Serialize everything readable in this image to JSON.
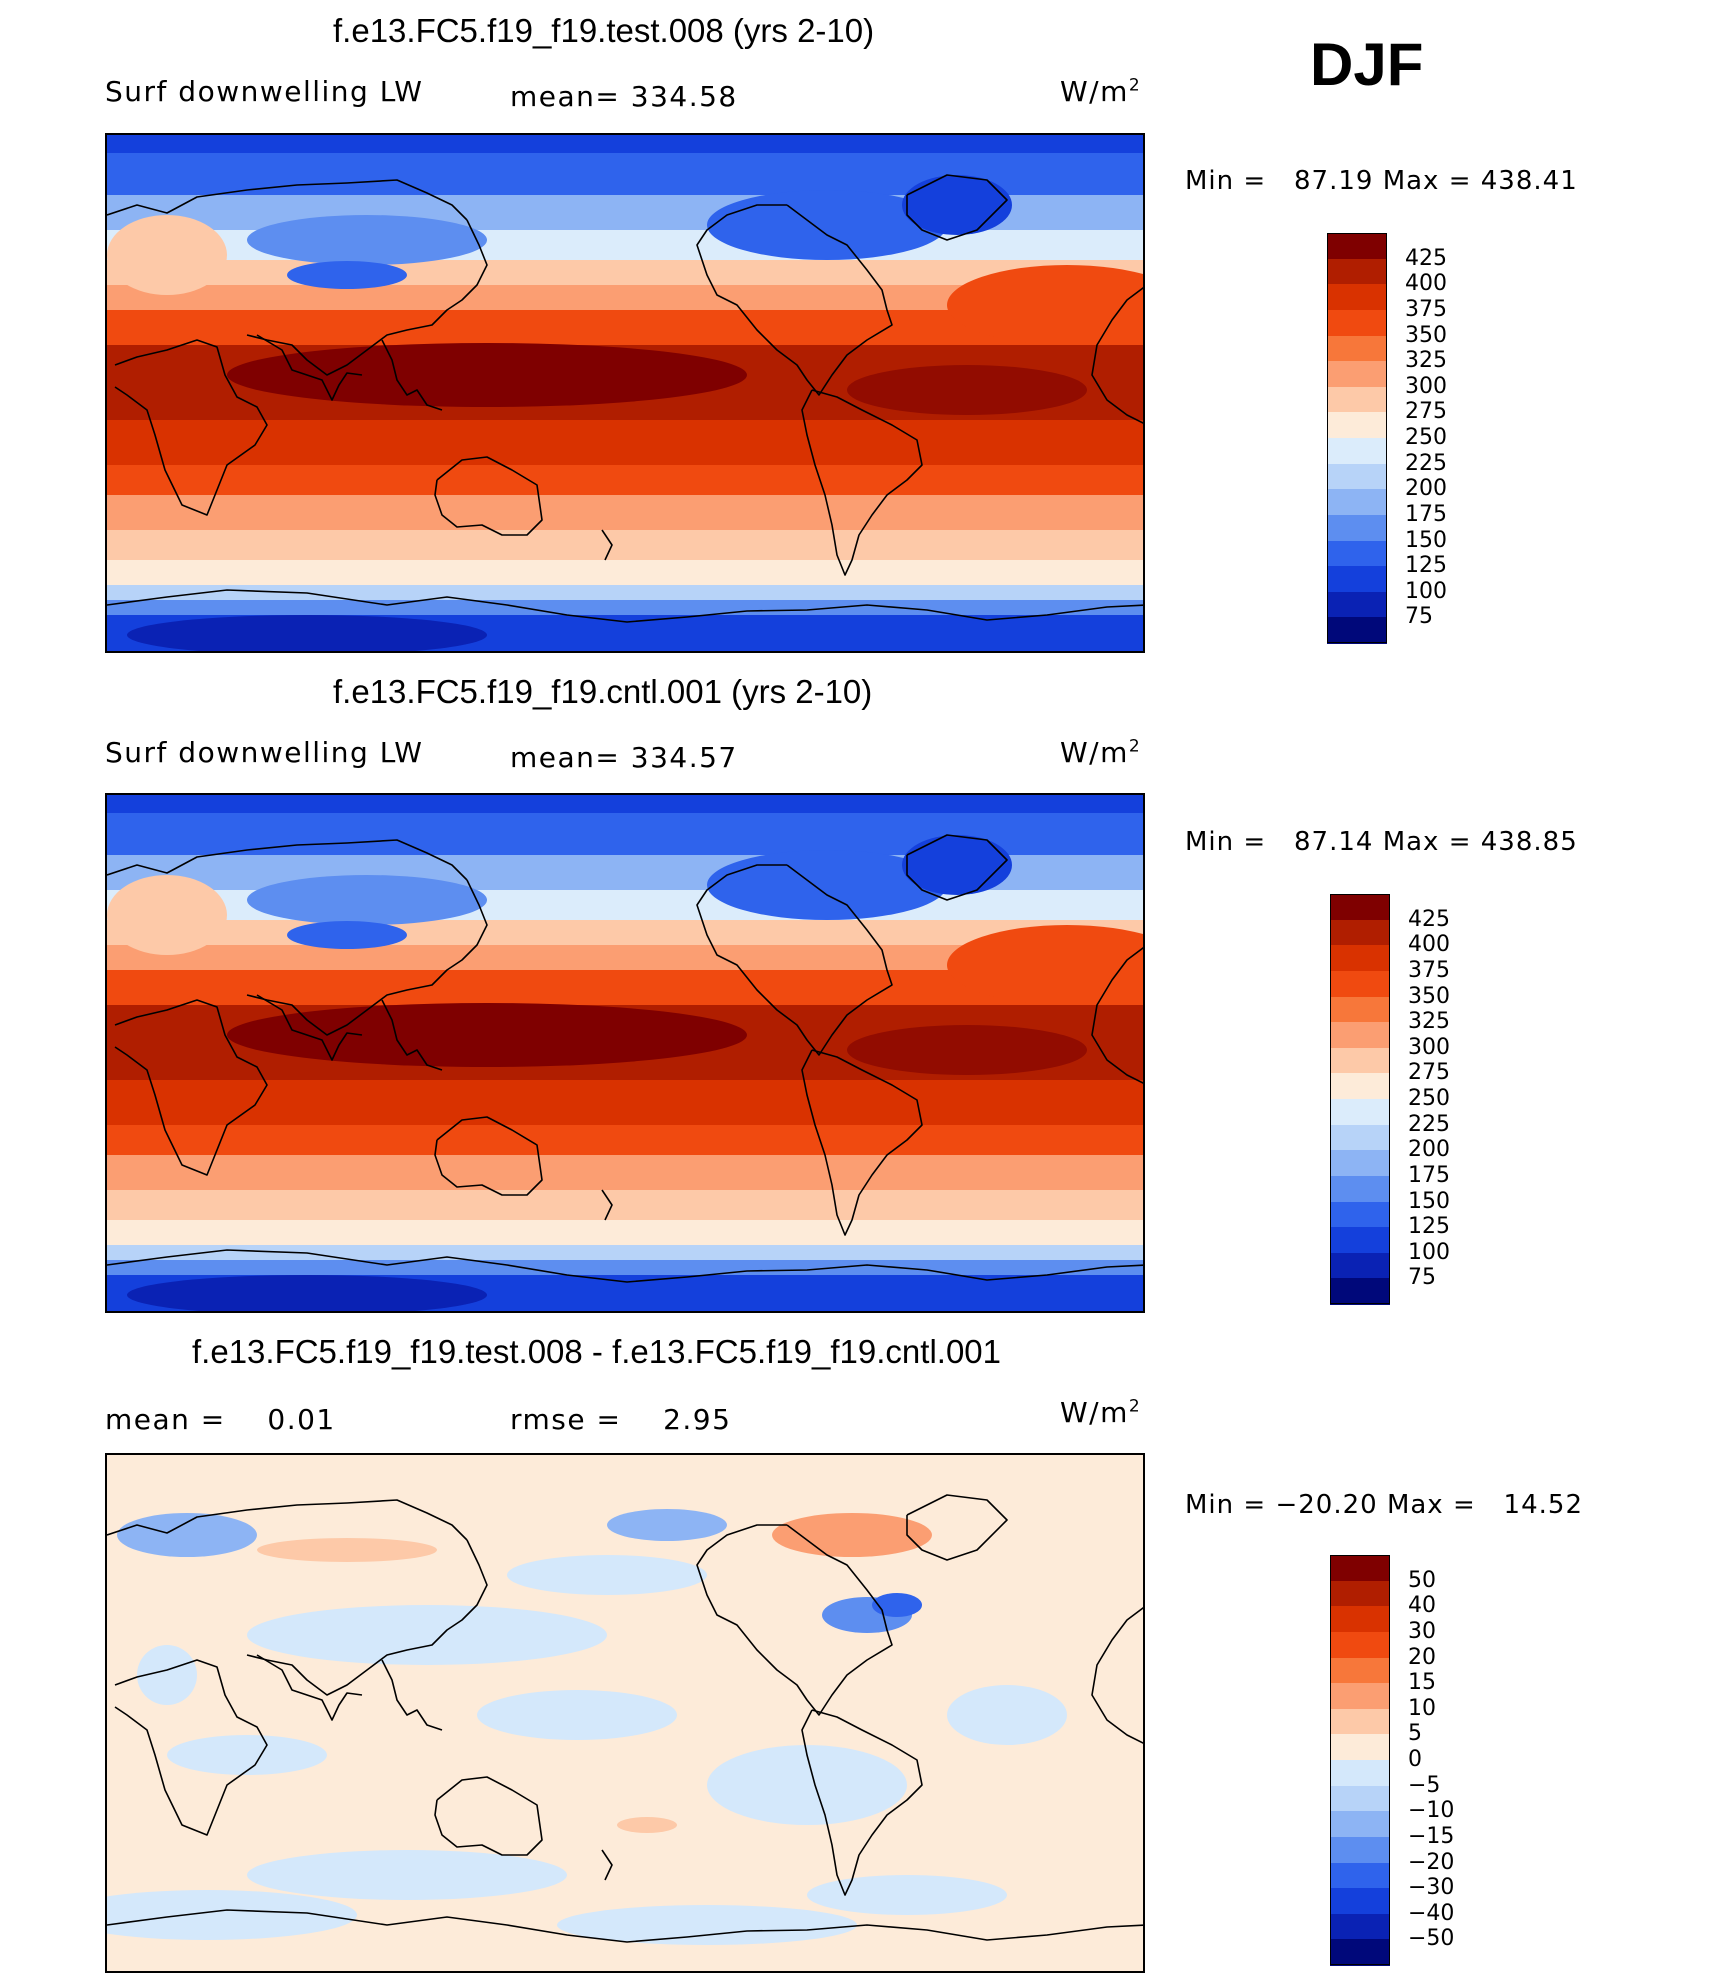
{
  "season": "DJF",
  "panels": [
    {
      "title": "f.e13.FC5.f19_f19.test.008 (yrs 2-10)",
      "left_label": "Surf downwelling LW",
      "center_label": "mean= 334.58",
      "units": "W/m",
      "units_sup": "2",
      "min_label": "Min =",
      "min_value": "87.19",
      "max_label": "Max =",
      "max_value": "438.41",
      "field": "absolute"
    },
    {
      "title": "f.e13.FC5.f19_f19.cntl.001 (yrs 2-10)",
      "left_label": "Surf downwelling LW",
      "center_label": "mean= 334.57",
      "units": "W/m",
      "units_sup": "2",
      "min_label": "Min =",
      "min_value": "87.14",
      "max_label": "Max =",
      "max_value": "438.85",
      "field": "absolute"
    },
    {
      "title": "f.e13.FC5.f19_f19.test.008 - f.e13.FC5.f19_f19.cntl.001",
      "left_label": "mean =",
      "left_value": "0.01",
      "center_label": "rmse =",
      "center_value": "2.95",
      "units": "W/m",
      "units_sup": "2",
      "min_label": "Min =",
      "min_value": "−20.20",
      "max_label": "Max =",
      "max_value": "14.52",
      "field": "difference"
    }
  ],
  "colorbars": {
    "absolute": {
      "ticks": [
        "425",
        "400",
        "375",
        "350",
        "325",
        "300",
        "275",
        "250",
        "225",
        "200",
        "175",
        "150",
        "125",
        "100",
        "75"
      ],
      "colors": [
        "#7f0000",
        "#b01e00",
        "#d93200",
        "#f04a10",
        "#f7773a",
        "#fb9e72",
        "#fdc9a8",
        "#fdebd9",
        "#dbecfb",
        "#b7d3f8",
        "#8db4f4",
        "#5d8ef0",
        "#2f63ec",
        "#1440dc",
        "#0a22b4",
        "#00087a"
      ]
    },
    "difference": {
      "ticks": [
        "50",
        "40",
        "30",
        "20",
        "15",
        "10",
        "5",
        "0",
        "−5",
        "−10",
        "−15",
        "−20",
        "−30",
        "−40",
        "−50"
      ],
      "colors": [
        "#7f0000",
        "#b01e00",
        "#d93200",
        "#f04a10",
        "#f7773a",
        "#fb9e72",
        "#fdc9a8",
        "#fdebd9",
        "#d4e8fb",
        "#b7d3f8",
        "#8db4f4",
        "#5d8ef0",
        "#2f63ec",
        "#1440dc",
        "#0a22b4",
        "#00087a"
      ]
    }
  }
}
